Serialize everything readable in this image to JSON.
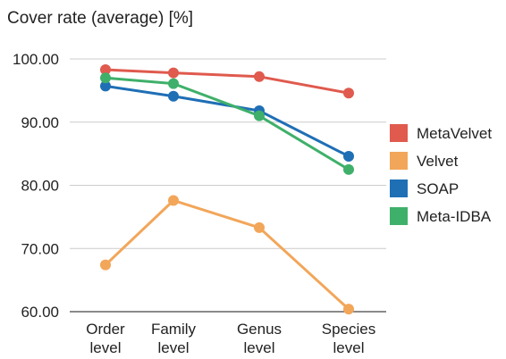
{
  "chart_data": {
    "type": "line",
    "title": "Cover rate (average) [%]",
    "categories": [
      [
        "Order",
        "level"
      ],
      [
        "Family",
        "level"
      ],
      [
        "Genus",
        "level"
      ],
      [
        "Species",
        "level"
      ]
    ],
    "y_ticks": [
      "100.00",
      "90.00",
      "80.00",
      "70.00",
      "60.00"
    ],
    "ylim": [
      60,
      100
    ],
    "grid": true,
    "legend_position": "right",
    "series": [
      {
        "name": "MetaVelvet",
        "color": "#e05a4e",
        "values": [
          98.3,
          97.8,
          97.2,
          94.6
        ]
      },
      {
        "name": "Velvet",
        "color": "#f2a65a",
        "values": [
          67.4,
          77.6,
          73.3,
          60.4
        ]
      },
      {
        "name": "SOAP",
        "color": "#1f6fb5",
        "values": [
          95.7,
          94.1,
          91.8,
          84.6
        ]
      },
      {
        "name": "Meta-IDBA",
        "color": "#3fb06a",
        "values": [
          97.0,
          96.1,
          91.0,
          82.5
        ]
      }
    ]
  }
}
